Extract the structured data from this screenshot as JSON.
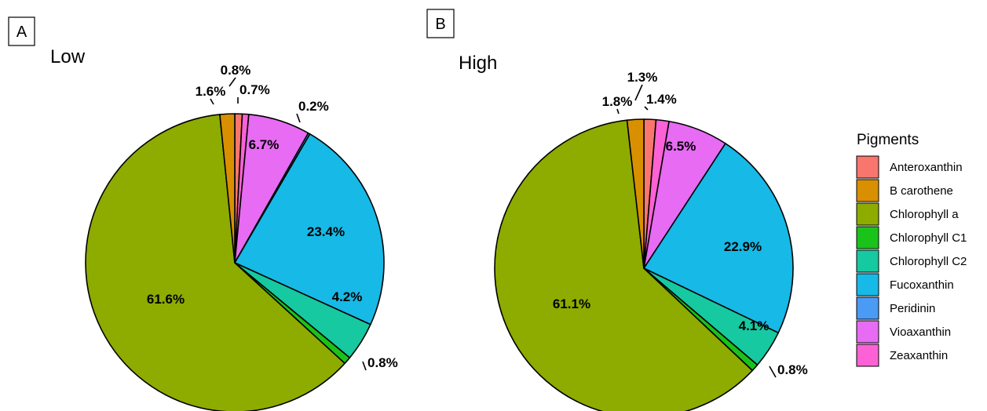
{
  "chart_data": [
    {
      "type": "pie",
      "panel_label": "A",
      "title": "Low",
      "slices": [
        {
          "category": "Anteroxanthin",
          "value": 0.8,
          "label": "0.8%"
        },
        {
          "category": "Zeaxanthin",
          "value": 0.7,
          "label": "0.7%"
        },
        {
          "category": "Vioaxanthin",
          "value": 6.7,
          "label": "6.7%"
        },
        {
          "category": "Peridinin",
          "value": 0.2,
          "label": "0.2%"
        },
        {
          "category": "Fucoxanthin",
          "value": 23.4,
          "label": "23.4%"
        },
        {
          "category": "Chlorophyll C2",
          "value": 4.2,
          "label": "4.2%"
        },
        {
          "category": "Chlorophyll C1",
          "value": 0.8,
          "label": "0.8%"
        },
        {
          "category": "Chlorophyll a",
          "value": 61.6,
          "label": "61.6%"
        },
        {
          "category": "B carothene",
          "value": 1.6,
          "label": "1.6%"
        }
      ]
    },
    {
      "type": "pie",
      "panel_label": "B",
      "title": "High",
      "slices": [
        {
          "category": "Anteroxanthin",
          "value": 1.3,
          "label": "1.3%"
        },
        {
          "category": "Zeaxanthin",
          "value": 1.4,
          "label": "1.4%"
        },
        {
          "category": "Vioaxanthin",
          "value": 6.5,
          "label": "6.5%"
        },
        {
          "category": "Fucoxanthin",
          "value": 22.9,
          "label": "22.9%"
        },
        {
          "category": "Chlorophyll C2",
          "value": 4.1,
          "label": "4.1%"
        },
        {
          "category": "Chlorophyll C1",
          "value": 0.8,
          "label": "0.8%"
        },
        {
          "category": "Chlorophyll a",
          "value": 61.1,
          "label": "61.1%"
        },
        {
          "category": "B carothene",
          "value": 1.8,
          "label": "1.8%"
        }
      ]
    }
  ],
  "legend": {
    "title": "Pigments",
    "placement": "right",
    "items": [
      {
        "name": "Anteroxanthin",
        "color": "#F8766D"
      },
      {
        "name": "B carothene",
        "color": "#D89000"
      },
      {
        "name": "Chlorophyll a",
        "color": "#8EAB00"
      },
      {
        "name": "Chlorophyll C1",
        "color": "#1AC31A"
      },
      {
        "name": "Chlorophyll C2",
        "color": "#16C9A0"
      },
      {
        "name": "Fucoxanthin",
        "color": "#17B9E6"
      },
      {
        "name": "Peridinin",
        "color": "#4A9BF5"
      },
      {
        "name": "Vioaxanthin",
        "color": "#E76BF3"
      },
      {
        "name": "Zeaxanthin",
        "color": "#FC61D5"
      }
    ]
  }
}
